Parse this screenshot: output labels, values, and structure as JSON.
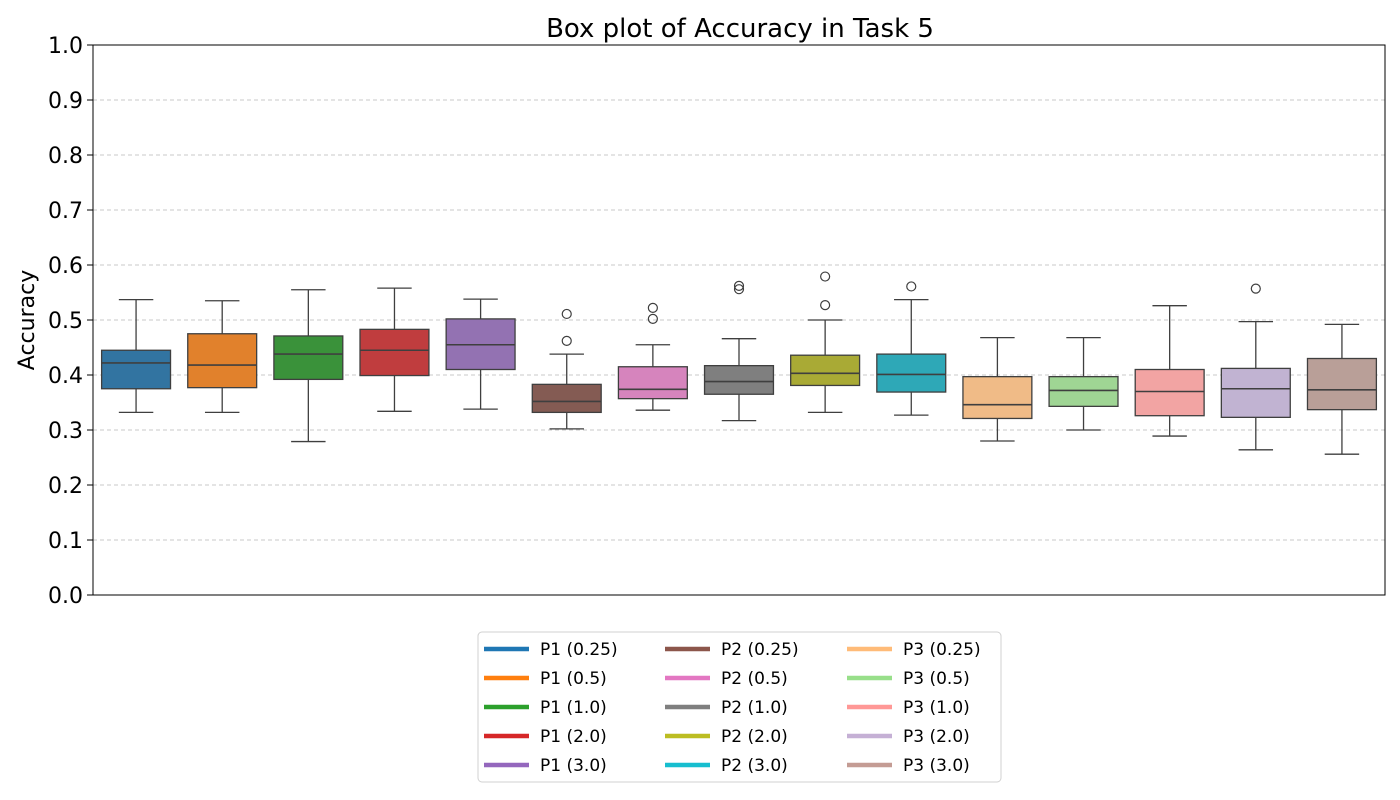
{
  "chart_data": {
    "type": "box",
    "title": "Box plot of Accuracy in Task 5",
    "ylabel": "Accuracy",
    "xlabel": "",
    "ylim": [
      0.0,
      1.0
    ],
    "yticks": [
      "0.0",
      "0.1",
      "0.2",
      "0.3",
      "0.4",
      "0.5",
      "0.6",
      "0.7",
      "0.8",
      "0.9",
      "1.0"
    ],
    "grid": "y-dashed",
    "legend_position": "bottom-center",
    "legend_columns": 3,
    "series": [
      {
        "name": "P1 (0.25)",
        "color": "#1f77b4",
        "box_color": "#3274a1",
        "whisker_low": 0.332,
        "q1": 0.375,
        "median": 0.422,
        "q3": 0.445,
        "whisker_high": 0.537,
        "outliers": []
      },
      {
        "name": "P1 (0.5)",
        "color": "#ff7f0e",
        "box_color": "#e1812c",
        "whisker_low": 0.332,
        "q1": 0.377,
        "median": 0.418,
        "q3": 0.475,
        "whisker_high": 0.535,
        "outliers": []
      },
      {
        "name": "P1 (1.0)",
        "color": "#2ca02c",
        "box_color": "#3a923a",
        "whisker_low": 0.279,
        "q1": 0.392,
        "median": 0.438,
        "q3": 0.471,
        "whisker_high": 0.555,
        "outliers": []
      },
      {
        "name": "P1 (2.0)",
        "color": "#d62728",
        "box_color": "#c03d3e",
        "whisker_low": 0.334,
        "q1": 0.399,
        "median": 0.445,
        "q3": 0.483,
        "whisker_high": 0.558,
        "outliers": []
      },
      {
        "name": "P1 (3.0)",
        "color": "#9467bd",
        "box_color": "#9372b2",
        "whisker_low": 0.338,
        "q1": 0.41,
        "median": 0.455,
        "q3": 0.502,
        "whisker_high": 0.538,
        "outliers": []
      },
      {
        "name": "P2 (0.25)",
        "color": "#8c564b",
        "box_color": "#845b53",
        "whisker_low": 0.302,
        "q1": 0.332,
        "median": 0.352,
        "q3": 0.383,
        "whisker_high": 0.438,
        "outliers": [
          0.462,
          0.511
        ]
      },
      {
        "name": "P2 (0.5)",
        "color": "#e377c2",
        "box_color": "#d684bd",
        "whisker_low": 0.336,
        "q1": 0.357,
        "median": 0.374,
        "q3": 0.415,
        "whisker_high": 0.455,
        "outliers": [
          0.502,
          0.522
        ]
      },
      {
        "name": "P2 (1.0)",
        "color": "#7f7f7f",
        "box_color": "#7f7f7f",
        "whisker_low": 0.317,
        "q1": 0.365,
        "median": 0.388,
        "q3": 0.417,
        "whisker_high": 0.466,
        "outliers": [
          0.556,
          0.562
        ]
      },
      {
        "name": "P2 (2.0)",
        "color": "#bcbd22",
        "box_color": "#a9aa35",
        "whisker_low": 0.332,
        "q1": 0.381,
        "median": 0.403,
        "q3": 0.436,
        "whisker_high": 0.5,
        "outliers": [
          0.527,
          0.579
        ]
      },
      {
        "name": "P2 (3.0)",
        "color": "#17becf",
        "box_color": "#2ea8b7",
        "whisker_low": 0.327,
        "q1": 0.369,
        "median": 0.401,
        "q3": 0.438,
        "whisker_high": 0.537,
        "outliers": [
          0.561
        ]
      },
      {
        "name": "P3 (0.25)",
        "color": "#ffbb78",
        "box_color": "#f0bb87",
        "whisker_low": 0.28,
        "q1": 0.321,
        "median": 0.346,
        "q3": 0.397,
        "whisker_high": 0.468,
        "outliers": []
      },
      {
        "name": "P3 (0.5)",
        "color": "#98df8a",
        "box_color": "#9fd594",
        "whisker_low": 0.3,
        "q1": 0.343,
        "median": 0.372,
        "q3": 0.397,
        "whisker_high": 0.468,
        "outliers": []
      },
      {
        "name": "P3 (1.0)",
        "color": "#ff9896",
        "box_color": "#f2a4a3",
        "whisker_low": 0.289,
        "q1": 0.326,
        "median": 0.37,
        "q3": 0.41,
        "whisker_high": 0.526,
        "outliers": []
      },
      {
        "name": "P3 (2.0)",
        "color": "#c5b0d5",
        "box_color": "#c1b3d2",
        "whisker_low": 0.264,
        "q1": 0.323,
        "median": 0.375,
        "q3": 0.412,
        "whisker_high": 0.497,
        "outliers": [
          0.557
        ]
      },
      {
        "name": "P3 (3.0)",
        "color": "#c49c94",
        "box_color": "#b99f98",
        "whisker_low": 0.256,
        "q1": 0.337,
        "median": 0.373,
        "q3": 0.43,
        "whisker_high": 0.492,
        "outliers": []
      }
    ]
  }
}
